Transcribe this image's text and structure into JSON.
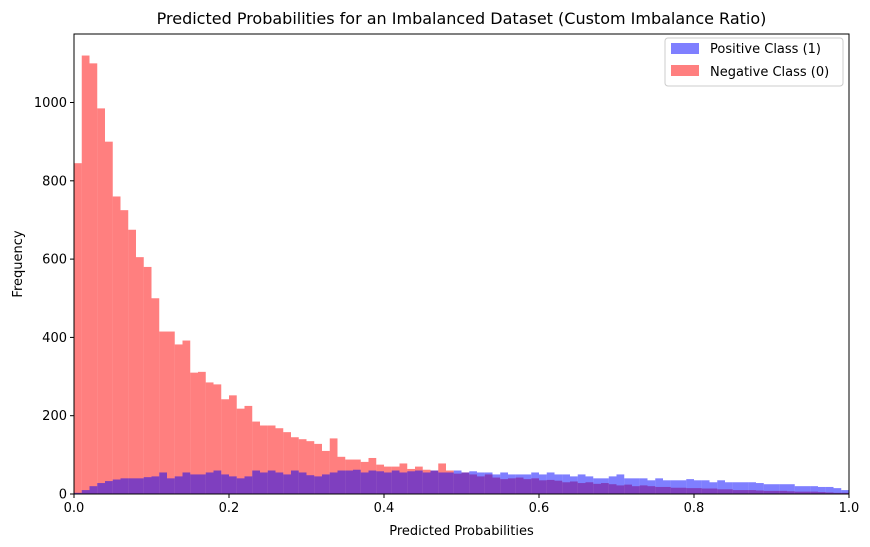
{
  "chart_data": {
    "type": "histogram",
    "title": "Predicted Probabilities for an Imbalanced Dataset (Custom Imbalance Ratio)",
    "xlabel": "Predicted Probabilities",
    "ylabel": "Frequency",
    "xlim": [
      0.0,
      1.0
    ],
    "ylim": [
      0,
      1175
    ],
    "x_ticks": [
      "0.0",
      "0.2",
      "0.4",
      "0.6",
      "0.8",
      "1.0"
    ],
    "y_ticks": [
      "0",
      "200",
      "400",
      "600",
      "800",
      "1000"
    ],
    "grid": false,
    "legend_position": "top-right",
    "bin_width": 0.01,
    "series": [
      {
        "name": "Positive Class (1)",
        "color": "#0000ff",
        "opacity": 0.5,
        "bin_start": 0.0,
        "values": [
          3,
          10,
          20,
          28,
          33,
          37,
          40,
          40,
          40,
          43,
          45,
          55,
          40,
          45,
          55,
          50,
          50,
          55,
          60,
          50,
          45,
          40,
          45,
          60,
          55,
          60,
          55,
          50,
          60,
          55,
          48,
          45,
          50,
          55,
          60,
          60,
          62,
          55,
          60,
          58,
          55,
          60,
          55,
          58,
          60,
          55,
          60,
          55,
          55,
          60,
          55,
          58,
          55,
          55,
          50,
          55,
          50,
          50,
          50,
          55,
          50,
          55,
          50,
          50,
          45,
          50,
          45,
          40,
          40,
          45,
          50,
          40,
          40,
          40,
          35,
          40,
          35,
          35,
          35,
          38,
          35,
          35,
          30,
          35,
          30,
          30,
          30,
          30,
          28,
          25,
          25,
          25,
          25,
          20,
          20,
          20,
          18,
          18,
          15,
          10
        ]
      },
      {
        "name": "Negative Class (0)",
        "color": "#ff0000",
        "opacity": 0.5,
        "bin_start": 0.0,
        "values": [
          845,
          1120,
          1100,
          985,
          900,
          760,
          725,
          675,
          605,
          580,
          500,
          415,
          415,
          382,
          392,
          310,
          312,
          285,
          280,
          242,
          252,
          218,
          225,
          185,
          175,
          175,
          168,
          158,
          145,
          140,
          135,
          128,
          110,
          142,
          95,
          88,
          88,
          82,
          92,
          75,
          70,
          70,
          78,
          64,
          70,
          62,
          60,
          78,
          60,
          52,
          55,
          50,
          45,
          50,
          42,
          38,
          40,
          42,
          38,
          40,
          35,
          36,
          34,
          30,
          32,
          28,
          30,
          26,
          28,
          25,
          22,
          24,
          20,
          22,
          20,
          18,
          18,
          16,
          16,
          15,
          15,
          14,
          14,
          12,
          12,
          10,
          10,
          10,
          9,
          8,
          8,
          8,
          7,
          6,
          6,
          6,
          5,
          4,
          3,
          3
        ]
      }
    ]
  }
}
